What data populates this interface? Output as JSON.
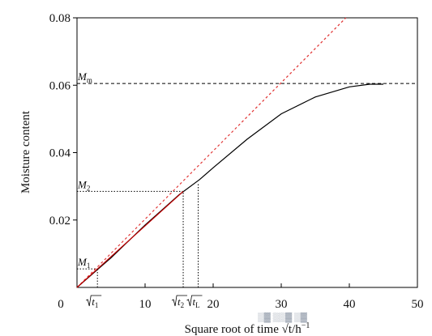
{
  "chart_data": {
    "type": "line",
    "xlabel": "Square root of time √t/h",
    "xlabel_sup": "−1",
    "ylabel": "Moisture content",
    "xlim": [
      0,
      50
    ],
    "ylim": [
      0,
      0.08
    ],
    "x_ticks": [
      "0",
      "10",
      "20",
      "30",
      "40",
      "50"
    ],
    "y_ticks": [
      "0.02",
      "0.04",
      "0.06",
      "0.08"
    ],
    "grid": false,
    "series": [
      {
        "style": "solid",
        "color": "#000000",
        "x": [
          0,
          5,
          10,
          15,
          18,
          20,
          25,
          30,
          35,
          40,
          43,
          45
        ],
        "y": [
          0,
          0.0088,
          0.0185,
          0.0275,
          0.032,
          0.0355,
          0.044,
          0.0515,
          0.0565,
          0.0595,
          0.0603,
          0.0603
        ]
      },
      {
        "style": "dashed",
        "color": "#e03030",
        "x": [
          0,
          39.5
        ],
        "y": [
          0,
          0.08
        ]
      },
      {
        "style": "solid",
        "color": "#c00000",
        "x": [
          0,
          15.6
        ],
        "y": [
          0,
          0.0285
        ]
      }
    ],
    "reference_lines": [
      {
        "label": "M",
        "sub": "m",
        "orientation": "horizontal",
        "y": 0.0605,
        "x_from": 0,
        "x_to": 50,
        "style": "dashed"
      },
      {
        "label": "M",
        "sub": "2",
        "orientation": "horizontal",
        "y": 0.0285,
        "x_from": 0,
        "x_to": 15.6,
        "style": "dotted"
      },
      {
        "label": "M",
        "sub": "1",
        "orientation": "horizontal",
        "y": 0.0055,
        "x_from": 0,
        "x_to": 3,
        "style": "dotted"
      }
    ],
    "vertical_markers": [
      {
        "label": "t",
        "sub": "1",
        "x": 3,
        "y_to": 0.0055
      },
      {
        "label": "t",
        "sub": "2",
        "x": 15.6,
        "y_to": 0.0285
      },
      {
        "label": "t",
        "sub": "L",
        "x": 17.8,
        "y_to": 0.031
      }
    ]
  },
  "watermark": "▒▓ ▒▒▓ ▒▓"
}
